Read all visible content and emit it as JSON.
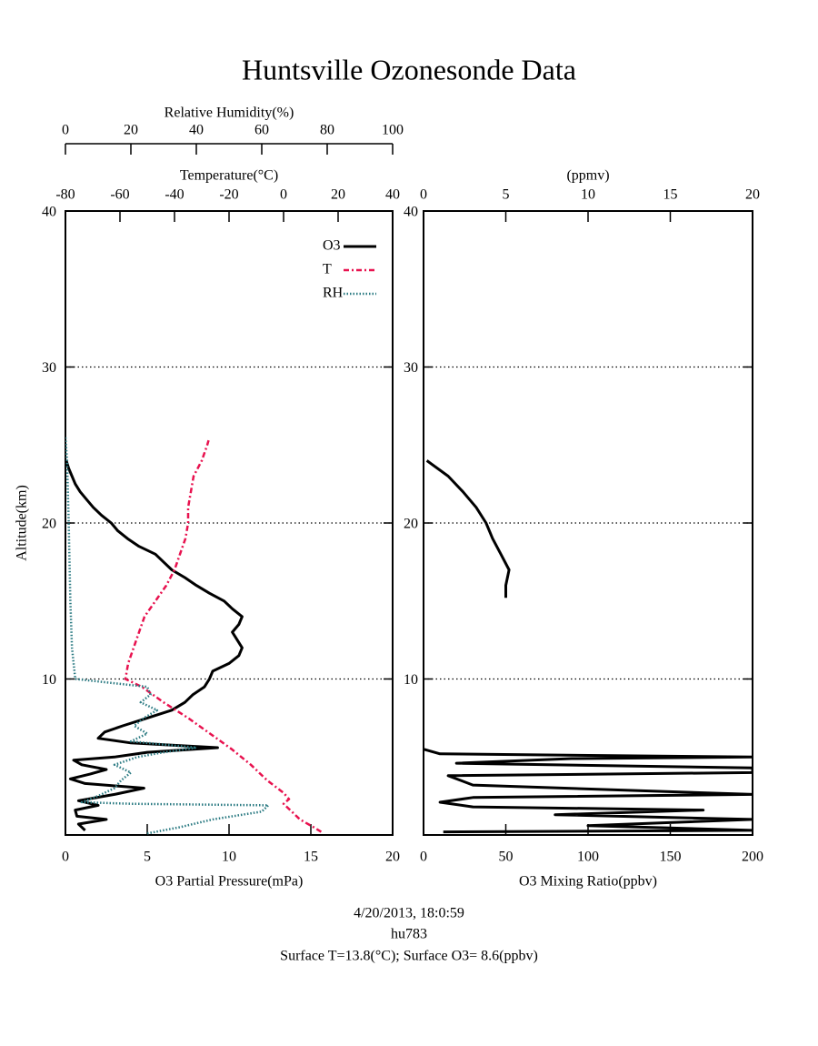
{
  "title": "Huntsville Ozonesonde Data",
  "footer": [
    "4/20/2013, 18:0:59",
    "hu783",
    "Surface T=13.8(°C); Surface O3= 8.6(ppbv)"
  ],
  "chart_data": [
    {
      "type": "line",
      "ylabel": "Altitude(km)",
      "ylim": [
        0,
        40
      ],
      "yticks": [
        10,
        20,
        30,
        40
      ],
      "grid": true,
      "xaxes": [
        {
          "label": "O3 Partial Pressure(mPa)",
          "position": "bottom",
          "lim": [
            0,
            20
          ],
          "ticks": [
            0,
            5,
            10,
            15,
            20
          ]
        },
        {
          "label": "Temperature(°C)",
          "position": "top",
          "lim": [
            -80,
            40
          ],
          "ticks": [
            -80,
            -60,
            -40,
            -20,
            0,
            20,
            40
          ]
        },
        {
          "label": "Relative Humidity(%)",
          "position": "top2",
          "lim": [
            0,
            100
          ],
          "ticks": [
            0,
            20,
            40,
            60,
            80,
            100
          ]
        }
      ],
      "legend": "upper right",
      "series": [
        {
          "name": "O3",
          "color": "#000000",
          "style": "solid",
          "xaxis": 0,
          "x": [
            1.2,
            0.8,
            2.5,
            0.7,
            0.6,
            2.0,
            0.8,
            3.0,
            4.8,
            1.2,
            0.3,
            1.5,
            2.5,
            1.0,
            0.5,
            3.0,
            5.0,
            9.3,
            4.0,
            2.0,
            2.4,
            3.5,
            5.0,
            6.5,
            7.3,
            7.8,
            8.5,
            8.8,
            9.0,
            10.0,
            10.6,
            10.8,
            10.5,
            10.2,
            10.6,
            10.8,
            10.2,
            9.7,
            8.8,
            8.0,
            7.3,
            6.5,
            6.0,
            5.5,
            4.5,
            3.8,
            3.2,
            2.8,
            2.2,
            1.7,
            1.3,
            0.9,
            0.6,
            0.4,
            0.2,
            0.05
          ],
          "y": [
            0.3,
            0.7,
            1.0,
            1.2,
            1.6,
            1.9,
            2.2,
            2.6,
            3.0,
            3.3,
            3.6,
            3.9,
            4.2,
            4.5,
            4.8,
            5.0,
            5.3,
            5.6,
            5.9,
            6.2,
            6.6,
            7.0,
            7.5,
            8.0,
            8.5,
            9.0,
            9.5,
            10.0,
            10.5,
            11.0,
            11.5,
            12.0,
            12.5,
            13.0,
            13.5,
            14.0,
            14.5,
            15.0,
            15.5,
            16.0,
            16.5,
            17.0,
            17.5,
            18.0,
            18.5,
            19.0,
            19.5,
            20.0,
            20.5,
            21.0,
            21.5,
            22.0,
            22.5,
            23.0,
            23.5,
            24.0
          ]
        },
        {
          "name": "T",
          "color": "#e8124f",
          "style": "dashdot",
          "xaxis": 1,
          "x": [
            13.8,
            11,
            6,
            3,
            0,
            2,
            0,
            -6,
            -12,
            -19,
            -27,
            -35,
            -44,
            -52,
            -58,
            -57,
            -55,
            -53,
            -51,
            -47,
            -43,
            -40,
            -38,
            -36,
            -35,
            -35,
            -34,
            -33,
            -30,
            -28,
            -27.5
          ],
          "y": [
            0.2,
            0.5,
            1.0,
            1.5,
            2.0,
            2.3,
            2.7,
            3.5,
            4.5,
            5.5,
            6.5,
            7.5,
            8.5,
            9.5,
            10,
            11,
            12,
            13,
            14,
            15,
            16,
            17,
            18,
            19,
            20,
            21,
            22,
            23,
            24,
            25,
            25.3
          ]
        },
        {
          "name": "RH",
          "color": "#2a7a82",
          "style": "dotted",
          "xaxis": 2,
          "x": [
            25,
            35,
            45,
            60,
            62,
            20,
            5,
            10,
            15,
            17,
            20,
            15,
            22,
            30,
            40,
            20,
            25,
            21,
            24,
            28,
            23,
            26,
            25,
            3,
            2,
            1.5,
            1,
            0.5,
            0
          ],
          "y": [
            0.1,
            0.5,
            1.0,
            1.5,
            1.9,
            2.0,
            2.1,
            2.5,
            3.0,
            3.5,
            4.0,
            4.5,
            5.0,
            5.3,
            5.6,
            6.0,
            6.5,
            7.0,
            7.5,
            8.0,
            8.5,
            9.0,
            9.5,
            10.0,
            12,
            15,
            20,
            24,
            25.5
          ]
        }
      ]
    },
    {
      "type": "line",
      "ylim": [
        0,
        40
      ],
      "yticks": [
        10,
        20,
        30,
        40
      ],
      "grid": true,
      "xaxes": [
        {
          "label": "O3 Mixing Ratio(ppbv)",
          "position": "bottom",
          "lim": [
            0,
            200
          ],
          "ticks": [
            0,
            50,
            100,
            150,
            200
          ]
        },
        {
          "label": "(ppmv)",
          "position": "top",
          "lim": [
            0,
            20
          ],
          "ticks": [
            0,
            5,
            10,
            15,
            20
          ]
        }
      ],
      "series": [
        {
          "color": "#000000",
          "style": "solid",
          "xaxis": 0,
          "x": [
            12,
            200,
            100,
            200,
            80,
            170,
            30,
            10,
            30,
            200,
            30,
            15,
            200,
            200,
            20,
            90,
            200,
            10,
            0
          ],
          "y": [
            0.2,
            0.3,
            0.6,
            1.0,
            1.3,
            1.6,
            1.8,
            2.1,
            2.4,
            2.6,
            3.2,
            3.8,
            4.0,
            4.3,
            4.6,
            4.9,
            5.0,
            5.2,
            5.5
          ]
        },
        {
          "color": "#000000",
          "style": "solid",
          "xaxis": 1,
          "x": [
            5.0,
            5.0,
            5.2,
            4.7,
            4.2,
            3.8,
            3.2,
            2.4,
            1.5,
            0.2
          ],
          "y": [
            15.2,
            16,
            17,
            18,
            19,
            20,
            21,
            22,
            23,
            24
          ]
        }
      ]
    }
  ]
}
